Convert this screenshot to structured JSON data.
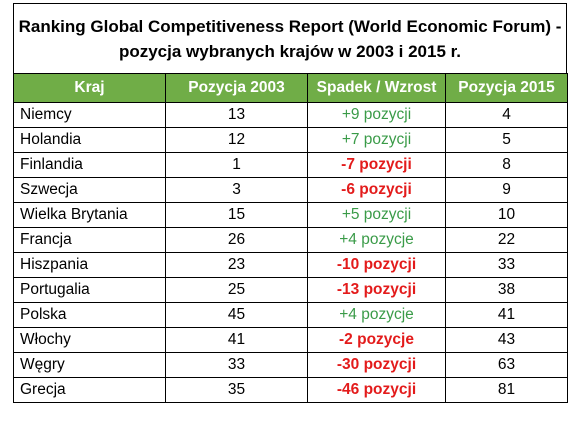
{
  "title": {
    "line1": "Ranking Global Competitiveness Report (World Economic Forum) -",
    "line2": "pozycja wybranych krajów w 2003 i 2015 r."
  },
  "table": {
    "headers": [
      "Kraj",
      "Pozycja 2003",
      "Spadek / Wzrost",
      "Pozycja 2015"
    ],
    "rows": [
      {
        "kraj": "Niemcy",
        "p2003": "13",
        "change": "+9 pozycji",
        "trend": "up",
        "p2015": "4"
      },
      {
        "kraj": "Holandia",
        "p2003": "12",
        "change": "+7 pozycji",
        "trend": "up",
        "p2015": "5"
      },
      {
        "kraj": "Finlandia",
        "p2003": "1",
        "change": "-7 pozycji",
        "trend": "down",
        "p2015": "8"
      },
      {
        "kraj": "Szwecja",
        "p2003": "3",
        "change": "-6 pozycji",
        "trend": "down",
        "p2015": "9"
      },
      {
        "kraj": "Wielka Brytania",
        "p2003": "15",
        "change": "+5 pozycji",
        "trend": "up",
        "p2015": "10"
      },
      {
        "kraj": "Francja",
        "p2003": "26",
        "change": "+4 pozycje",
        "trend": "up",
        "p2015": "22"
      },
      {
        "kraj": "Hiszpania",
        "p2003": "23",
        "change": "-10 pozycji",
        "trend": "down",
        "p2015": "33"
      },
      {
        "kraj": "Portugalia",
        "p2003": "25",
        "change": "-13 pozycji",
        "trend": "down",
        "p2015": "38"
      },
      {
        "kraj": "Polska",
        "p2003": "45",
        "change": "+4 pozycje",
        "trend": "up",
        "p2015": "41"
      },
      {
        "kraj": "Włochy",
        "p2003": "41",
        "change": "-2 pozycje",
        "trend": "down",
        "p2015": "43"
      },
      {
        "kraj": "Węgry",
        "p2003": "33",
        "change": "-30 pozycji",
        "trend": "down",
        "p2015": "63"
      },
      {
        "kraj": "Grecja",
        "p2003": "35",
        "change": "-46 pozycji",
        "trend": "down",
        "p2015": "81"
      }
    ]
  },
  "colors": {
    "header_bg": "#70ad47",
    "header_text": "#ffffff",
    "up": "#3a9b48",
    "down": "#e31b1b"
  }
}
